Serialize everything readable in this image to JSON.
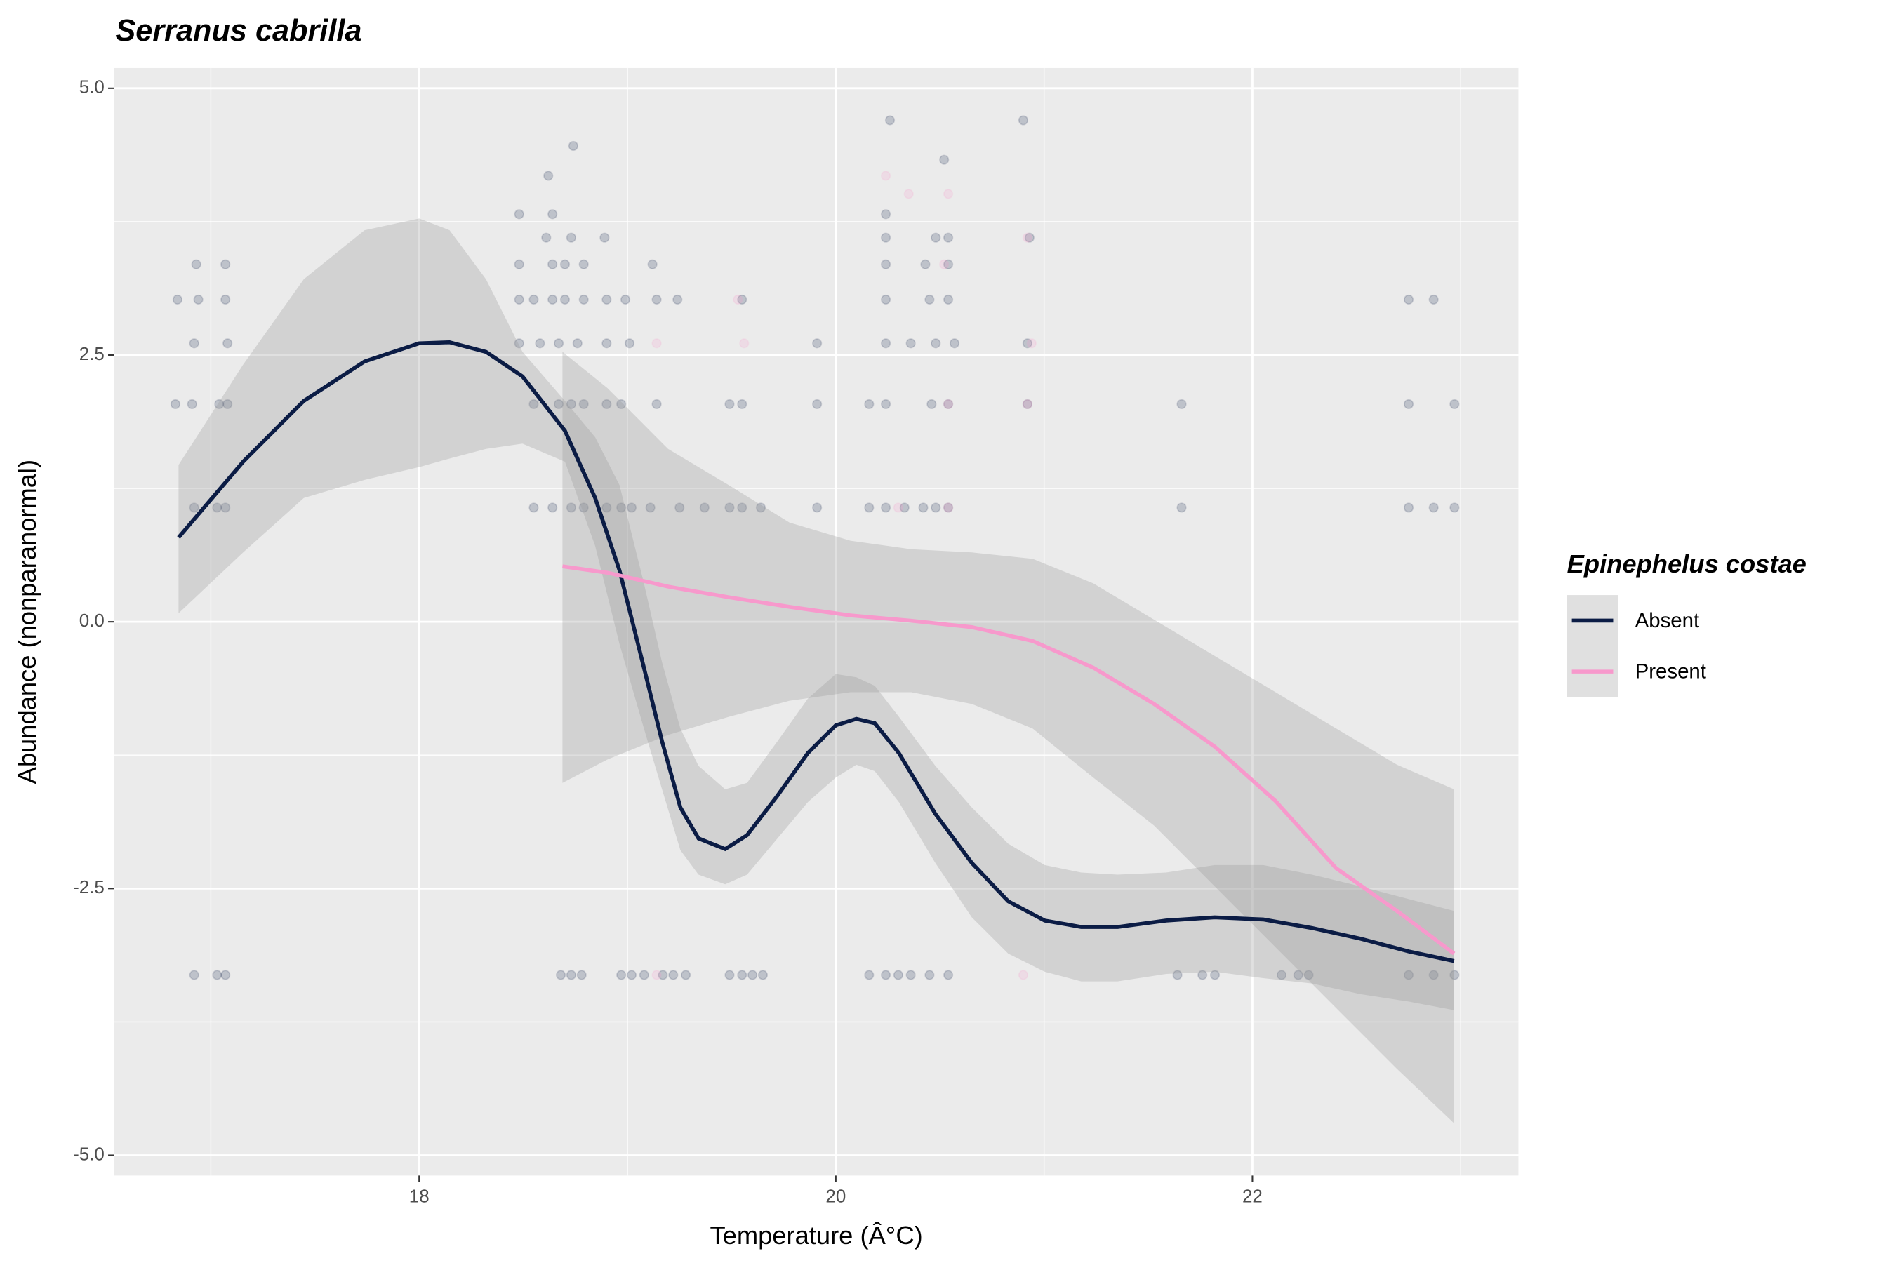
{
  "chart_data": {
    "type": "scatter-smooth",
    "title": "Serranus cabrilla",
    "x_label": "Temperature (Â°C)",
    "y_label": "Abundance (nonparanormal)",
    "legend_title": "Epinephelus costae",
    "legend_position": "right",
    "grid": true,
    "xlim": [
      16.536,
      23.277
    ],
    "ylim": [
      -5.19,
      5.19
    ],
    "xticks": [
      18,
      20,
      22
    ],
    "yticks": [
      {
        "value": 5,
        "label": "5.0"
      },
      2.5,
      {
        "value": 0,
        "label": "0.0"
      },
      -2.5,
      {
        "value": -5,
        "label": "-5.0"
      }
    ],
    "x_minor_grid": [
      17,
      19,
      21,
      23
    ],
    "y_minor_grid": [
      3.75,
      1.25,
      -1.25,
      -3.75
    ],
    "series": [
      {
        "name": "Absent",
        "color": "#0b1c45",
        "x": [
          16.845,
          17.155,
          17.446,
          17.738,
          18.0,
          18.146,
          18.321,
          18.496,
          18.7,
          18.845,
          18.962,
          19.079,
          19.166,
          19.254,
          19.341,
          19.469,
          19.574,
          19.72,
          19.866,
          20.0,
          20.099,
          20.187,
          20.303,
          20.478,
          20.653,
          20.828,
          21.003,
          21.178,
          21.353,
          21.586,
          21.819,
          22.052,
          22.286,
          22.519,
          22.752,
          22.968
        ],
        "values": [
          0.79,
          1.5,
          2.07,
          2.44,
          2.61,
          2.62,
          2.53,
          2.3,
          1.79,
          1.16,
          0.48,
          -0.43,
          -1.12,
          -1.74,
          -2.03,
          -2.13,
          -2.0,
          -1.63,
          -1.23,
          -0.97,
          -0.91,
          -0.95,
          -1.23,
          -1.8,
          -2.26,
          -2.62,
          -2.8,
          -2.86,
          -2.86,
          -2.8,
          -2.77,
          -2.79,
          -2.87,
          -2.97,
          -3.09,
          -3.18
        ],
        "upper": [
          1.47,
          2.41,
          3.21,
          3.67,
          3.78,
          3.67,
          3.21,
          2.53,
          2.07,
          1.73,
          1.28,
          0.36,
          -0.38,
          -1.0,
          -1.35,
          -1.57,
          -1.51,
          -1.12,
          -0.72,
          -0.49,
          -0.52,
          -0.6,
          -0.89,
          -1.35,
          -1.74,
          -2.08,
          -2.28,
          -2.35,
          -2.37,
          -2.35,
          -2.28,
          -2.28,
          -2.37,
          -2.48,
          -2.6,
          -2.71
        ],
        "lower": [
          0.08,
          0.65,
          1.16,
          1.33,
          1.45,
          1.53,
          1.62,
          1.67,
          1.5,
          0.71,
          -0.21,
          -1.0,
          -1.57,
          -2.14,
          -2.37,
          -2.46,
          -2.37,
          -2.03,
          -1.69,
          -1.46,
          -1.34,
          -1.4,
          -1.69,
          -2.26,
          -2.77,
          -3.11,
          -3.28,
          -3.37,
          -3.37,
          -3.3,
          -3.28,
          -3.34,
          -3.39,
          -3.49,
          -3.56,
          -3.64
        ],
        "points_x": [
          16.92,
          17.03,
          17.07,
          18.68,
          18.73,
          18.78,
          18.97,
          19.02,
          19.08,
          19.17,
          19.22,
          19.28,
          19.49,
          19.55,
          19.6,
          19.65,
          20.16,
          20.24,
          20.3,
          20.36,
          20.45,
          20.54,
          21.64,
          21.76,
          21.82,
          22.14,
          22.22,
          22.27,
          22.75,
          22.87,
          22.97,
          16.92,
          17.03,
          17.07,
          18.55,
          18.64,
          18.73,
          18.79,
          18.9,
          18.97,
          19.02,
          19.11,
          19.25,
          19.37,
          19.49,
          19.55,
          19.64,
          19.91,
          20.16,
          20.24,
          20.33,
          20.42,
          20.48,
          20.54,
          21.66,
          22.75,
          22.87,
          22.97,
          16.83,
          16.91,
          17.04,
          17.08,
          18.55,
          18.67,
          18.73,
          18.79,
          18.9,
          18.97,
          19.14,
          19.49,
          19.55,
          19.91,
          20.16,
          20.24,
          20.46,
          20.54,
          20.92,
          21.66,
          22.75,
          22.97,
          16.92,
          17.08,
          18.48,
          18.58,
          18.67,
          18.76,
          18.9,
          19.01,
          19.91,
          20.24,
          20.36,
          20.48,
          20.57,
          20.92,
          16.84,
          16.94,
          17.07,
          18.48,
          18.55,
          18.64,
          18.7,
          18.79,
          18.9,
          18.99,
          19.14,
          19.24,
          19.55,
          20.24,
          20.45,
          20.54,
          22.75,
          22.87,
          16.93,
          17.07,
          18.48,
          18.64,
          18.7,
          18.79,
          19.12,
          20.24,
          20.43,
          20.54,
          18.61,
          18.73,
          18.89,
          20.24,
          20.48,
          20.54,
          20.93,
          18.48,
          18.64,
          20.24,
          18.62,
          18.74,
          20.26,
          20.9,
          20.52
        ],
        "points_y": [
          -3.31,
          -3.31,
          -3.31,
          -3.31,
          -3.31,
          -3.31,
          -3.31,
          -3.31,
          -3.31,
          -3.31,
          -3.31,
          -3.31,
          -3.31,
          -3.31,
          -3.31,
          -3.31,
          -3.31,
          -3.31,
          -3.31,
          -3.31,
          -3.31,
          -3.31,
          -3.31,
          -3.31,
          -3.31,
          -3.31,
          -3.31,
          -3.31,
          -3.31,
          -3.31,
          -3.31,
          1.07,
          1.07,
          1.07,
          1.07,
          1.07,
          1.07,
          1.07,
          1.07,
          1.07,
          1.07,
          1.07,
          1.07,
          1.07,
          1.07,
          1.07,
          1.07,
          1.07,
          1.07,
          1.07,
          1.07,
          1.07,
          1.07,
          1.07,
          1.07,
          1.07,
          1.07,
          1.07,
          2.04,
          2.04,
          2.04,
          2.04,
          2.04,
          2.04,
          2.04,
          2.04,
          2.04,
          2.04,
          2.04,
          2.04,
          2.04,
          2.04,
          2.04,
          2.04,
          2.04,
          2.04,
          2.04,
          2.04,
          2.04,
          2.04,
          2.61,
          2.61,
          2.61,
          2.61,
          2.61,
          2.61,
          2.61,
          2.61,
          2.61,
          2.61,
          2.61,
          2.61,
          2.61,
          2.61,
          3.02,
          3.02,
          3.02,
          3.02,
          3.02,
          3.02,
          3.02,
          3.02,
          3.02,
          3.02,
          3.02,
          3.02,
          3.02,
          3.02,
          3.02,
          3.02,
          3.02,
          3.02,
          3.35,
          3.35,
          3.35,
          3.35,
          3.35,
          3.35,
          3.35,
          3.35,
          3.35,
          3.35,
          3.6,
          3.6,
          3.6,
          3.6,
          3.6,
          3.6,
          3.6,
          3.82,
          3.82,
          3.82,
          4.18,
          4.46,
          4.7,
          4.7,
          4.33
        ]
      },
      {
        "name": "Present",
        "color": "#f799cc",
        "x": [
          18.688,
          18.904,
          19.195,
          19.487,
          19.778,
          20.07,
          20.362,
          20.653,
          20.945,
          21.236,
          21.528,
          21.819,
          22.111,
          22.402,
          22.694,
          22.968
        ],
        "values": [
          0.52,
          0.46,
          0.33,
          0.23,
          0.14,
          0.06,
          0.01,
          -0.05,
          -0.18,
          -0.43,
          -0.77,
          -1.17,
          -1.68,
          -2.31,
          -2.71,
          -3.11
        ],
        "upper": [
          2.53,
          2.19,
          1.62,
          1.28,
          0.93,
          0.76,
          0.68,
          0.65,
          0.59,
          0.36,
          0.02,
          -0.32,
          -0.66,
          -1.0,
          -1.34,
          -1.57
        ],
        "lower": [
          -1.51,
          -1.29,
          -1.06,
          -0.89,
          -0.74,
          -0.66,
          -0.66,
          -0.77,
          -1.0,
          -1.46,
          -1.91,
          -2.48,
          -3.05,
          -3.62,
          -4.19,
          -4.7
        ],
        "points_x": [
          19.56,
          20.24,
          20.35,
          20.54,
          20.52,
          19.53,
          20.92,
          20.94,
          19.14,
          20.54,
          20.92,
          19.14,
          20.9,
          20.3,
          20.54
        ],
        "points_y": [
          2.61,
          4.18,
          4.01,
          4.01,
          3.35,
          3.02,
          3.6,
          2.61,
          2.61,
          2.04,
          2.04,
          -3.31,
          -3.31,
          1.07,
          1.07
        ]
      }
    ]
  }
}
